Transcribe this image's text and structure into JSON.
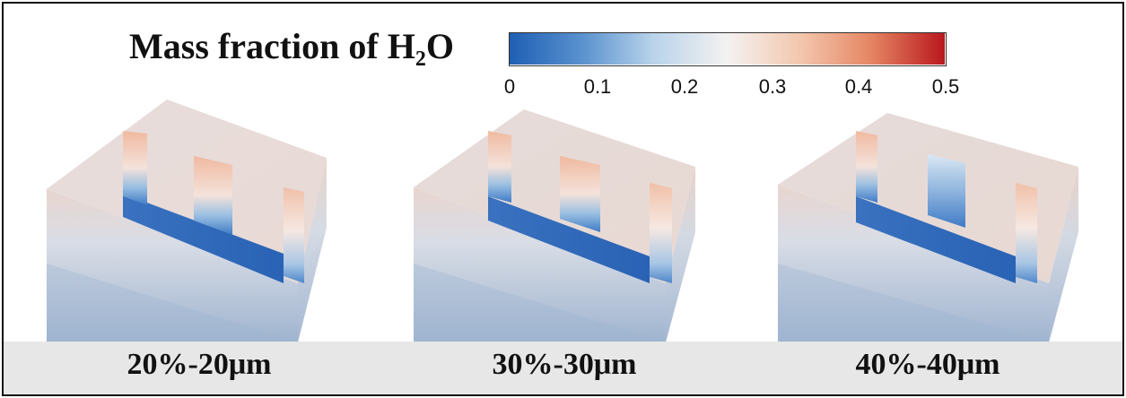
{
  "legend": {
    "title_main": "Mass fraction of H",
    "title_sub": "2",
    "title_end": "O",
    "ticks": [
      "0",
      "0.1",
      "0.2",
      "0.3",
      "0.4",
      "0.5"
    ],
    "range": [
      0,
      0.5
    ],
    "colormap": [
      "#1f5fb4",
      "#5b93cf",
      "#b9d3ea",
      "#f4f2f1",
      "#f3c6ad",
      "#e58663",
      "#b9171d"
    ]
  },
  "cases": [
    {
      "label": "20%-20μm"
    },
    {
      "label": "30%-30μm"
    },
    {
      "label": "40%-40μm"
    }
  ]
}
